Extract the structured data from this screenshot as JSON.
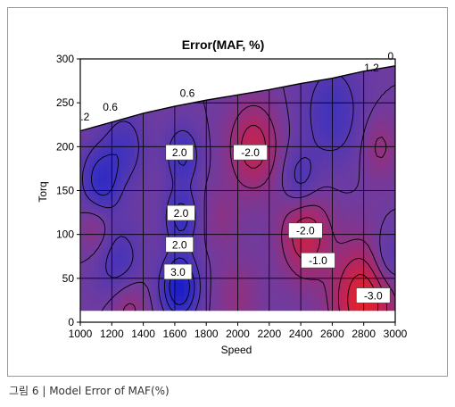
{
  "caption": "그림 6 | Model Error of MAF(%)",
  "chart_data": {
    "type": "heatmap",
    "subtype": "filled-contour",
    "title": "Error(MAF, %)",
    "xlabel": "Speed",
    "ylabel": "Torq",
    "xlim": [
      1000,
      3000
    ],
    "ylim": [
      0,
      300
    ],
    "x_ticks": [
      1000,
      1200,
      1400,
      1600,
      1800,
      2000,
      2200,
      2400,
      2600,
      2800,
      3000
    ],
    "y_ticks": [
      0,
      50,
      100,
      150,
      200,
      250,
      300
    ],
    "x_tick_labels": [
      "1000",
      "1200",
      "1400",
      "1600",
      "1800",
      "2000",
      "2200",
      "2400",
      "2600",
      "2800",
      "3000"
    ],
    "y_tick_labels": [
      "0",
      "50",
      "100",
      "150",
      "200",
      "250",
      "300"
    ],
    "grid": true,
    "colors": {
      "high_error": "#1e1ec8",
      "mid": "#6e3ca0",
      "low_error": "#e8202a",
      "contour_line": "#000000"
    },
    "upper_boundary": [
      {
        "x": 1000,
        "y": 218
      },
      {
        "x": 1200,
        "y": 228
      },
      {
        "x": 1400,
        "y": 238
      },
      {
        "x": 1600,
        "y": 246
      },
      {
        "x": 1800,
        "y": 253
      },
      {
        "x": 2000,
        "y": 259
      },
      {
        "x": 2200,
        "y": 265
      },
      {
        "x": 2400,
        "y": 272
      },
      {
        "x": 2600,
        "y": 278
      },
      {
        "x": 2800,
        "y": 286
      },
      {
        "x": 3000,
        "y": 292
      }
    ],
    "lower_boundary_y": 13,
    "boxed_labels": [
      {
        "text": "2.0",
        "x": 1630,
        "y": 193
      },
      {
        "text": "-2.0",
        "x": 2080,
        "y": 193
      },
      {
        "text": "2.0",
        "x": 1640,
        "y": 124
      },
      {
        "text": "2.0",
        "x": 1630,
        "y": 88
      },
      {
        "text": "-2.0",
        "x": 2430,
        "y": 104
      },
      {
        "text": "-1.0",
        "x": 2510,
        "y": 70
      },
      {
        "text": "3.0",
        "x": 1620,
        "y": 57
      },
      {
        "text": "-3.0",
        "x": 2860,
        "y": 30
      }
    ],
    "plain_labels": [
      {
        "text": ".2",
        "x": 1030,
        "y": 230
      },
      {
        "text": "0.6",
        "x": 1190,
        "y": 241
      },
      {
        "text": "0.6",
        "x": 1680,
        "y": 257
      },
      {
        "text": "1.2",
        "x": 2850,
        "y": 286
      },
      {
        "text": "0.",
        "x": 2980,
        "y": 299
      }
    ],
    "blobs": [
      {
        "x": 1130,
        "y": 160,
        "value": 2.6,
        "spread": 120
      },
      {
        "x": 1280,
        "y": 200,
        "value": 1.6,
        "spread": 130
      },
      {
        "x": 1250,
        "y": 65,
        "value": 1.8,
        "spread": 140
      },
      {
        "x": 1630,
        "y": 40,
        "value": 4.2,
        "spread": 110
      },
      {
        "x": 1640,
        "y": 120,
        "value": 2.4,
        "spread": 100
      },
      {
        "x": 1650,
        "y": 190,
        "value": 2.2,
        "spread": 100
      },
      {
        "x": 1100,
        "y": 110,
        "value": -1.2,
        "spread": 100
      },
      {
        "x": 1300,
        "y": 20,
        "value": -1.6,
        "spread": 120
      },
      {
        "x": 2100,
        "y": 200,
        "value": -2.6,
        "spread": 150
      },
      {
        "x": 2430,
        "y": 100,
        "value": -2.8,
        "spread": 150
      },
      {
        "x": 2800,
        "y": 25,
        "value": -4.0,
        "spread": 190
      },
      {
        "x": 2400,
        "y": 160,
        "value": 1.6,
        "spread": 110
      },
      {
        "x": 2600,
        "y": 240,
        "value": 1.8,
        "spread": 180
      },
      {
        "x": 2950,
        "y": 70,
        "value": 1.6,
        "spread": 110
      },
      {
        "x": 2900,
        "y": 200,
        "value": -1.2,
        "spread": 110
      },
      {
        "x": 1900,
        "y": 120,
        "value": -0.8,
        "spread": 110
      },
      {
        "x": 2000,
        "y": 30,
        "value": -1.0,
        "spread": 130
      }
    ]
  }
}
